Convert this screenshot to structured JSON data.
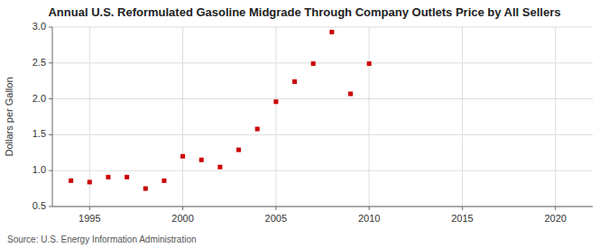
{
  "chart_data": {
    "type": "scatter",
    "title": "Annual U.S. Reformulated Gasoline Midgrade Through Company Outlets Price by All Sellers",
    "ylabel": "Dollars per Gallon",
    "source": "Source: U.S. Energy Information Administration",
    "x": [
      1994,
      1995,
      1996,
      1997,
      1998,
      1999,
      2000,
      2001,
      2002,
      2003,
      2004,
      2005,
      2006,
      2007,
      2008,
      2009,
      2010
    ],
    "values": [
      0.86,
      0.84,
      0.91,
      0.91,
      0.75,
      0.86,
      1.2,
      1.15,
      1.05,
      1.29,
      1.58,
      1.96,
      2.24,
      2.49,
      2.93,
      2.07,
      2.49
    ],
    "color": "#cc0000",
    "marker": "square",
    "xlim": [
      1993,
      2022
    ],
    "ylim": [
      0.5,
      3.0
    ],
    "xticks": [
      1995,
      2000,
      2005,
      2010,
      2015,
      2020
    ],
    "yticks": [
      0.5,
      {
        "value": 1.0,
        "label": "1.0"
      },
      1.5,
      {
        "value": 2.0,
        "label": "2.0"
      },
      2.5,
      {
        "value": 3.0,
        "label": "3.0"
      }
    ],
    "grid": true
  }
}
